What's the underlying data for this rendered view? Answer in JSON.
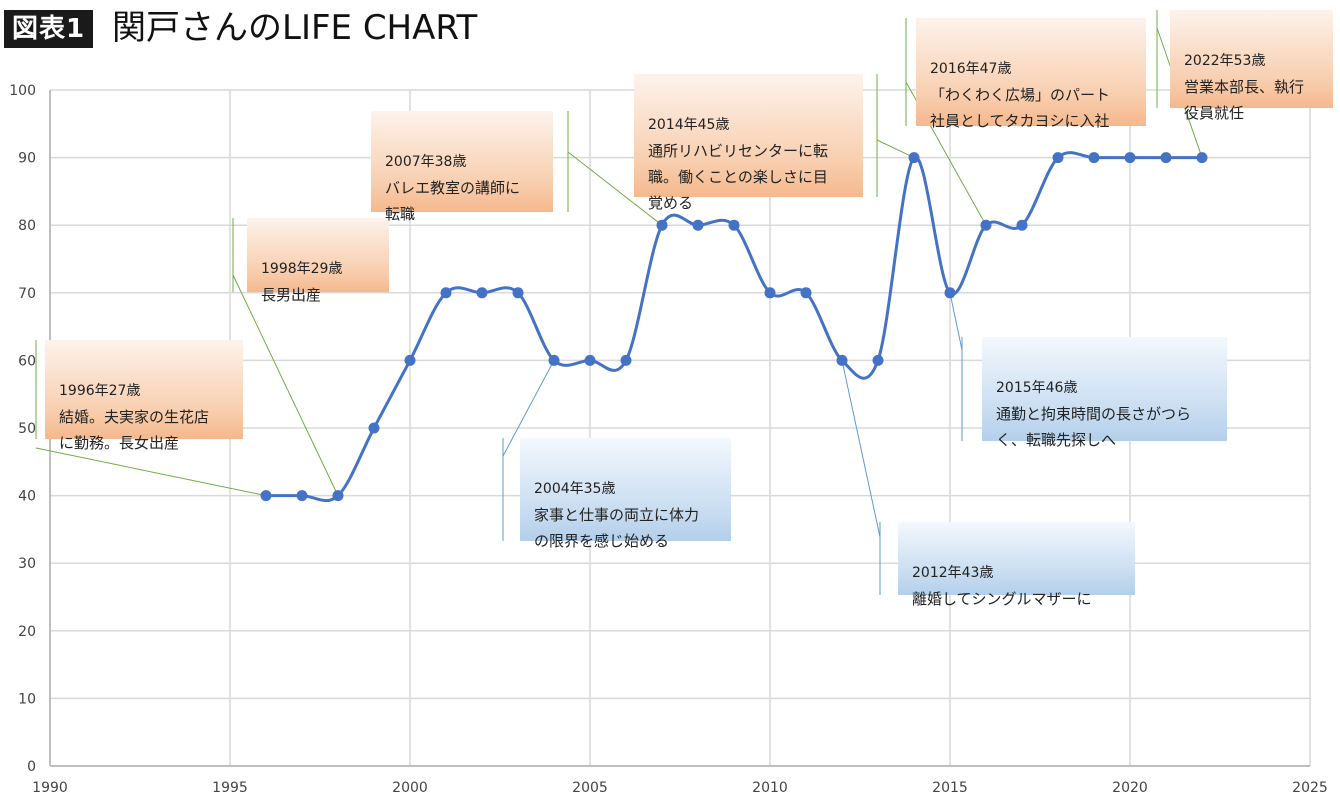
{
  "header": {
    "figure_tag": "図表1",
    "title": "関戸さんのLIFE CHART"
  },
  "colors": {
    "line": "#4472c4",
    "grid": "#d9d9d9",
    "leader_positive": "#70ad47",
    "leader_negative": "#5b9bd5",
    "note_positive": "#f5b88d",
    "note_negative": "#b3cfeb"
  },
  "chart_data": {
    "type": "line",
    "smooth": true,
    "x": [
      1996,
      1997,
      1998,
      1999,
      2000,
      2001,
      2002,
      2003,
      2004,
      2005,
      2006,
      2007,
      2008,
      2009,
      2010,
      2011,
      2012,
      2013,
      2014,
      2015,
      2016,
      2017,
      2018,
      2019,
      2020,
      2021,
      2022
    ],
    "series": [
      {
        "values": [
          40,
          40,
          40,
          50,
          60,
          70,
          70,
          70,
          60,
          60,
          60,
          80,
          80,
          80,
          70,
          70,
          60,
          60,
          90,
          70,
          80,
          80,
          90,
          90,
          90,
          90,
          90
        ]
      }
    ],
    "xlim": [
      1990,
      2025
    ],
    "ylim": [
      0,
      100
    ],
    "x_ticks": [
      1990,
      1995,
      2000,
      2005,
      2010,
      2015,
      2020,
      2025
    ],
    "y_ticks": [
      0,
      10,
      20,
      30,
      40,
      50,
      60,
      70,
      80,
      90,
      100
    ],
    "grid": true,
    "annotations": [
      {
        "id": "a1996",
        "year": "1996年27歳",
        "text": "結婚。夫実家の生花店\nに勤務。長女出産",
        "tone": "positive",
        "x": 1996,
        "y": 40
      },
      {
        "id": "a1998",
        "year": "1998年29歳",
        "text": "長男出産",
        "tone": "positive",
        "x": 1998,
        "y": 40
      },
      {
        "id": "a2004",
        "year": "2004年35歳",
        "text": "家事と仕事の両立に体力\nの限界を感じ始める",
        "tone": "negative",
        "x": 2004,
        "y": 60
      },
      {
        "id": "a2007",
        "year": "2007年38歳",
        "text": "バレエ教室の講師に\n転職",
        "tone": "positive",
        "x": 2007,
        "y": 80
      },
      {
        "id": "a2012",
        "year": "2012年43歳",
        "text": "離婚してシングルマザーに",
        "tone": "negative",
        "x": 2012,
        "y": 60
      },
      {
        "id": "a2014",
        "year": "2014年45歳",
        "text": "通所リハビリセンターに転\n職。働くことの楽しさに目\n覚める",
        "tone": "positive",
        "x": 2014,
        "y": 90
      },
      {
        "id": "a2015",
        "year": "2015年46歳",
        "text": "通勤と拘束時間の長さがつら\nく、転職先探しへ",
        "tone": "negative",
        "x": 2015,
        "y": 70
      },
      {
        "id": "a2016",
        "year": "2016年47歳",
        "text": "「わくわく広場」のパート\n社員としてタカヨシに入社",
        "tone": "positive",
        "x": 2016,
        "y": 80
      },
      {
        "id": "a2022",
        "year": "2022年53歳",
        "text": "営業本部長、執行\n役員就任",
        "tone": "positive",
        "x": 2022,
        "y": 90
      }
    ]
  }
}
